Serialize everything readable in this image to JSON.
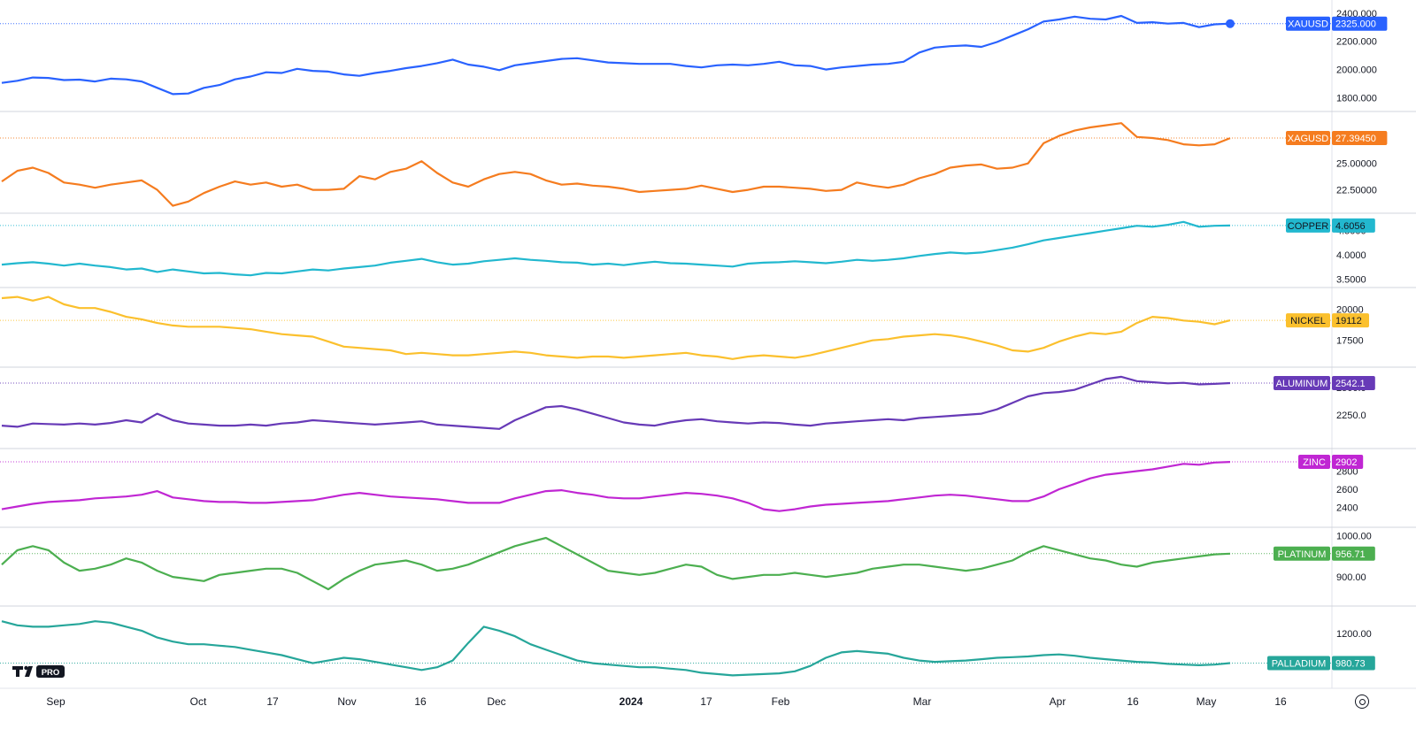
{
  "chart_data": {
    "type": "line",
    "x_axis_labels": [
      "Sep",
      "Oct",
      "17",
      "Nov",
      "16",
      "Dec",
      "2024",
      "17",
      "Feb",
      "Mar",
      "Apr",
      "16",
      "May",
      "16"
    ],
    "panels": [
      {
        "symbol": "XAUUSD",
        "last": "2325.000",
        "color": "#2962ff",
        "ticks": [
          "1800.000",
          "2000.000",
          "2200.000",
          "2400.000"
        ],
        "ylim": [
          1740,
          2430
        ],
        "values": [
          1905,
          1920,
          1943,
          1940,
          1925,
          1928,
          1915,
          1935,
          1930,
          1915,
          1870,
          1825,
          1830,
          1870,
          1890,
          1930,
          1950,
          1980,
          1975,
          2005,
          1990,
          1985,
          1965,
          1955,
          1975,
          1990,
          2010,
          2025,
          2045,
          2070,
          2035,
          2020,
          1995,
          2030,
          2045,
          2060,
          2075,
          2080,
          2065,
          2050,
          2045,
          2040,
          2040,
          2040,
          2025,
          2015,
          2030,
          2035,
          2030,
          2040,
          2055,
          2030,
          2025,
          2000,
          2015,
          2025,
          2035,
          2040,
          2055,
          2120,
          2155,
          2165,
          2170,
          2160,
          2195,
          2240,
          2285,
          2340,
          2355,
          2375,
          2360,
          2355,
          2380,
          2330,
          2335,
          2325,
          2330,
          2300,
          2320,
          2325
        ]
      },
      {
        "symbol": "XAGUSD",
        "last": "27.39450",
        "color": "#f57c1f",
        "ticks": [
          "22.50000",
          "25.00000"
        ],
        "ylim": [
          20.8,
          29.4
        ],
        "values": [
          23.3,
          24.3,
          24.6,
          24.1,
          23.2,
          23.0,
          22.7,
          23.0,
          23.2,
          23.4,
          22.5,
          21.0,
          21.4,
          22.2,
          22.8,
          23.3,
          23.0,
          23.2,
          22.8,
          23.0,
          22.5,
          22.5,
          22.6,
          23.8,
          23.5,
          24.2,
          24.5,
          25.2,
          24.1,
          23.2,
          22.8,
          23.5,
          24.0,
          24.2,
          24.0,
          23.4,
          23.0,
          23.1,
          22.9,
          22.8,
          22.6,
          22.3,
          22.4,
          22.5,
          22.6,
          22.9,
          22.6,
          22.3,
          22.5,
          22.8,
          22.8,
          22.7,
          22.6,
          22.4,
          22.5,
          23.2,
          22.9,
          22.7,
          23.0,
          23.6,
          24.0,
          24.6,
          24.8,
          24.9,
          24.5,
          24.6,
          25.0,
          26.9,
          27.6,
          28.1,
          28.4,
          28.6,
          28.8,
          27.5,
          27.4,
          27.2,
          26.8,
          26.7,
          26.8,
          27.39
        ]
      },
      {
        "symbol": "COPPER",
        "last": "4.6056",
        "color": "#22b8cf",
        "ticks": [
          "3.5000",
          "4.0000",
          "4.5000"
        ],
        "ylim": [
          3.42,
          4.75
        ],
        "values": [
          3.8,
          3.83,
          3.85,
          3.82,
          3.78,
          3.82,
          3.78,
          3.75,
          3.7,
          3.72,
          3.65,
          3.7,
          3.66,
          3.62,
          3.63,
          3.6,
          3.58,
          3.63,
          3.62,
          3.66,
          3.7,
          3.68,
          3.72,
          3.75,
          3.78,
          3.84,
          3.88,
          3.92,
          3.85,
          3.8,
          3.82,
          3.87,
          3.9,
          3.93,
          3.9,
          3.88,
          3.85,
          3.84,
          3.8,
          3.82,
          3.79,
          3.83,
          3.86,
          3.83,
          3.82,
          3.8,
          3.78,
          3.76,
          3.82,
          3.84,
          3.85,
          3.87,
          3.85,
          3.83,
          3.86,
          3.9,
          3.88,
          3.9,
          3.93,
          3.98,
          4.02,
          4.05,
          4.03,
          4.05,
          4.1,
          4.15,
          4.22,
          4.3,
          4.35,
          4.4,
          4.45,
          4.5,
          4.55,
          4.6,
          4.58,
          4.62,
          4.68,
          4.58,
          4.6,
          4.6056
        ]
      },
      {
        "symbol": "NICKEL",
        "last": "19112",
        "color": "#fbc02d",
        "ticks": [
          "17500",
          "20000"
        ],
        "ylim": [
          15700,
          21400
        ],
        "values": [
          20900,
          21000,
          20700,
          21000,
          20400,
          20100,
          20100,
          19800,
          19400,
          19200,
          18900,
          18700,
          18600,
          18600,
          18600,
          18500,
          18400,
          18200,
          18000,
          17900,
          17800,
          17400,
          17000,
          16900,
          16800,
          16700,
          16400,
          16500,
          16400,
          16300,
          16300,
          16400,
          16500,
          16600,
          16500,
          16300,
          16200,
          16100,
          16200,
          16200,
          16100,
          16200,
          16300,
          16400,
          16500,
          16300,
          16200,
          16000,
          16200,
          16300,
          16200,
          16100,
          16300,
          16600,
          16900,
          17200,
          17500,
          17600,
          17800,
          17900,
          18000,
          17900,
          17700,
          17400,
          17100,
          16700,
          16600,
          16900,
          17400,
          17800,
          18100,
          18000,
          18200,
          18900,
          19400,
          19300,
          19100,
          19000,
          18800,
          19112
        ]
      },
      {
        "symbol": "ALUMINUM",
        "last": "2542.1",
        "color": "#673ab7",
        "ticks": [
          "2250.0",
          "2500.0"
        ],
        "ylim": [
          1980,
          2640
        ],
        "values": [
          2150,
          2140,
          2170,
          2165,
          2160,
          2170,
          2160,
          2175,
          2200,
          2180,
          2260,
          2200,
          2170,
          2160,
          2150,
          2150,
          2160,
          2150,
          2170,
          2180,
          2200,
          2190,
          2180,
          2170,
          2160,
          2170,
          2180,
          2190,
          2160,
          2150,
          2140,
          2130,
          2120,
          2200,
          2260,
          2320,
          2330,
          2300,
          2260,
          2220,
          2180,
          2160,
          2150,
          2180,
          2200,
          2210,
          2190,
          2180,
          2170,
          2180,
          2175,
          2160,
          2150,
          2170,
          2180,
          2190,
          2200,
          2210,
          2200,
          2220,
          2230,
          2240,
          2250,
          2260,
          2300,
          2360,
          2420,
          2450,
          2460,
          2480,
          2530,
          2580,
          2600,
          2560,
          2550,
          2540,
          2545,
          2530,
          2535,
          2542.1
        ]
      },
      {
        "symbol": "ZINC",
        "last": "2902",
        "color": "#c026d3",
        "ticks": [
          "2400",
          "2600",
          "2800"
        ],
        "ylim": [
          2230,
          3000
        ],
        "values": [
          2380,
          2410,
          2440,
          2460,
          2470,
          2480,
          2500,
          2510,
          2520,
          2540,
          2580,
          2510,
          2490,
          2470,
          2460,
          2460,
          2450,
          2450,
          2460,
          2470,
          2480,
          2510,
          2540,
          2560,
          2540,
          2520,
          2510,
          2500,
          2490,
          2470,
          2450,
          2450,
          2450,
          2500,
          2540,
          2580,
          2590,
          2560,
          2540,
          2510,
          2500,
          2500,
          2520,
          2540,
          2560,
          2550,
          2530,
          2500,
          2450,
          2380,
          2360,
          2380,
          2410,
          2430,
          2440,
          2450,
          2460,
          2470,
          2490,
          2510,
          2530,
          2540,
          2530,
          2510,
          2490,
          2470,
          2470,
          2520,
          2600,
          2660,
          2720,
          2760,
          2780,
          2800,
          2820,
          2850,
          2880,
          2870,
          2895,
          2902
        ]
      },
      {
        "symbol": "PLATINUM",
        "last": "956.71",
        "color": "#4caf50",
        "ticks": [
          "900.00",
          "1000.00"
        ],
        "ylim": [
          840,
          1010
        ],
        "values": [
          930,
          965,
          975,
          965,
          935,
          915,
          920,
          930,
          945,
          935,
          915,
          900,
          895,
          890,
          905,
          910,
          915,
          920,
          920,
          910,
          890,
          870,
          895,
          915,
          930,
          935,
          940,
          930,
          915,
          920,
          930,
          945,
          960,
          975,
          985,
          995,
          975,
          955,
          935,
          915,
          910,
          905,
          910,
          920,
          930,
          925,
          905,
          895,
          900,
          905,
          905,
          910,
          905,
          900,
          905,
          910,
          920,
          925,
          930,
          930,
          925,
          920,
          915,
          920,
          930,
          940,
          960,
          975,
          965,
          955,
          945,
          940,
          930,
          925,
          935,
          940,
          945,
          950,
          955,
          956.71
        ]
      },
      {
        "symbol": "PALLADIUM",
        "last": "980.73",
        "color": "#26a69a",
        "ticks": [
          "1200.00"
        ],
        "ylim": [
          860,
          1370
        ],
        "values": [
          1290,
          1260,
          1250,
          1250,
          1260,
          1270,
          1290,
          1280,
          1250,
          1220,
          1170,
          1140,
          1120,
          1120,
          1110,
          1100,
          1080,
          1060,
          1040,
          1010,
          980,
          1000,
          1020,
          1010,
          990,
          970,
          950,
          930,
          950,
          1000,
          1130,
          1250,
          1220,
          1180,
          1120,
          1080,
          1040,
          1000,
          980,
          970,
          960,
          950,
          950,
          940,
          930,
          910,
          900,
          890,
          895,
          900,
          905,
          920,
          960,
          1020,
          1060,
          1070,
          1060,
          1050,
          1020,
          1000,
          990,
          995,
          1000,
          1010,
          1020,
          1025,
          1030,
          1040,
          1045,
          1035,
          1020,
          1010,
          1000,
          990,
          985,
          975,
          970,
          965,
          970,
          980.73
        ]
      }
    ]
  }
}
